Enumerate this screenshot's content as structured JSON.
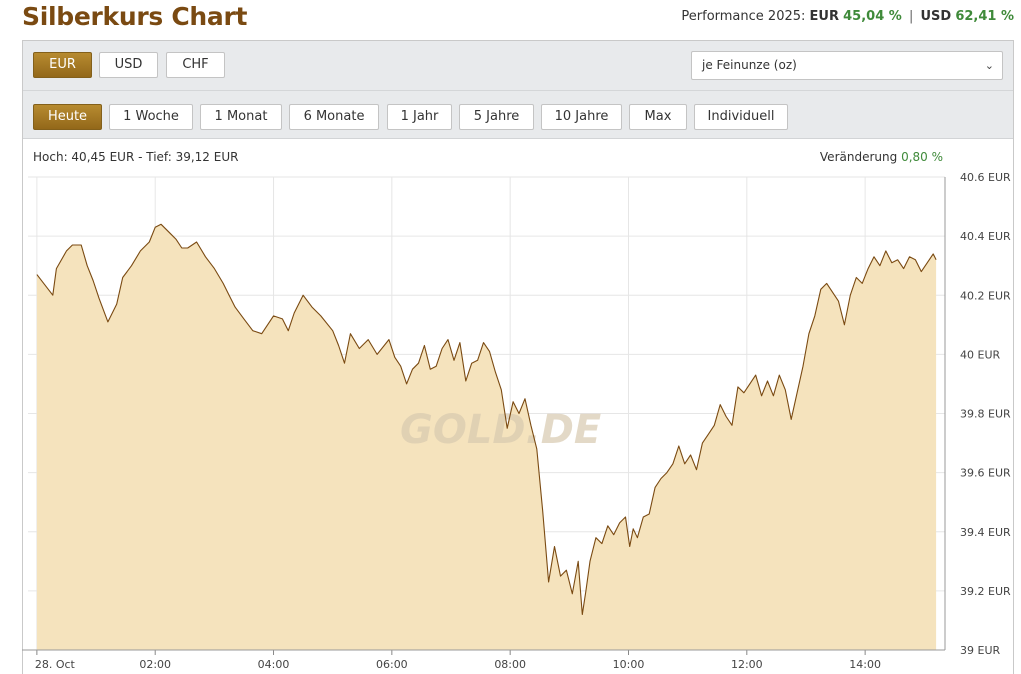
{
  "header": {
    "title": "Silberkurs Chart",
    "performance_label": "Performance 2025:",
    "eur_label": "EUR",
    "eur_value": "45,04 %",
    "separator": "|",
    "usd_label": "USD",
    "usd_value": "62,41 %"
  },
  "currency_tabs": [
    {
      "label": "EUR",
      "active": true
    },
    {
      "label": "USD",
      "active": false
    },
    {
      "label": "CHF",
      "active": false
    }
  ],
  "unit_select": {
    "value": "je Feinunze (oz)"
  },
  "range_tabs": [
    {
      "label": "Heute",
      "active": true
    },
    {
      "label": "1 Woche",
      "active": false
    },
    {
      "label": "1 Monat",
      "active": false
    },
    {
      "label": "6 Monate",
      "active": false
    },
    {
      "label": "1 Jahr",
      "active": false
    },
    {
      "label": "5 Jahre",
      "active": false
    },
    {
      "label": "10 Jahre",
      "active": false
    },
    {
      "label": "Max",
      "active": false
    },
    {
      "label": "Individuell",
      "active": false
    }
  ],
  "stats": {
    "high_low": "Hoch: 40,45 EUR - Tief: 39,12 EUR",
    "change_label": "Veränderung",
    "change_value": "0,80 %"
  },
  "colors": {
    "accent": "#a47a26",
    "line": "#7a4a12",
    "fill": "#f5e3bd",
    "positive": "#3f8a3a"
  },
  "chart_data": {
    "type": "area",
    "x_unit": "hours since 28 Oct 00:00",
    "x_tick_labels": [
      "28. Oct",
      "02:00",
      "04:00",
      "06:00",
      "08:00",
      "10:00",
      "12:00",
      "14:00"
    ],
    "x_tick_values": [
      0,
      2,
      4,
      6,
      8,
      10,
      12,
      14
    ],
    "xlim": [
      -0.15,
      15.35
    ],
    "y_tick_labels": [
      "39 EUR",
      "39.2 EUR",
      "39.4 EUR",
      "39.6 EUR",
      "39.8 EUR",
      "40 EUR",
      "40.2 EUR",
      "40.4 EUR",
      "40.6 EUR"
    ],
    "y_tick_values": [
      39.0,
      39.2,
      39.4,
      39.6,
      39.8,
      40.0,
      40.2,
      40.4,
      40.6
    ],
    "ylim": [
      39.0,
      40.6
    ],
    "grid": true,
    "watermark": "GOLD.DE",
    "x": [
      0.0,
      0.27,
      0.33,
      0.5,
      0.6,
      0.75,
      0.85,
      0.95,
      1.05,
      1.2,
      1.35,
      1.45,
      1.6,
      1.75,
      1.9,
      2.0,
      2.1,
      2.25,
      2.35,
      2.45,
      2.55,
      2.7,
      2.85,
      3.0,
      3.15,
      3.25,
      3.35,
      3.5,
      3.65,
      3.8,
      4.0,
      4.15,
      4.25,
      4.35,
      4.5,
      4.65,
      4.8,
      5.0,
      5.1,
      5.2,
      5.3,
      5.45,
      5.6,
      5.75,
      5.95,
      6.05,
      6.15,
      6.25,
      6.35,
      6.45,
      6.55,
      6.65,
      6.75,
      6.85,
      6.95,
      7.05,
      7.15,
      7.25,
      7.35,
      7.45,
      7.55,
      7.65,
      7.75,
      7.85,
      7.95,
      8.05,
      8.15,
      8.25,
      8.35,
      8.45,
      8.55,
      8.65,
      8.75,
      8.85,
      8.95,
      9.05,
      9.15,
      9.22,
      9.28,
      9.35,
      9.45,
      9.55,
      9.65,
      9.75,
      9.85,
      9.95,
      10.02,
      10.08,
      10.15,
      10.25,
      10.35,
      10.45,
      10.55,
      10.65,
      10.75,
      10.85,
      10.95,
      11.05,
      11.15,
      11.25,
      11.35,
      11.45,
      11.55,
      11.65,
      11.75,
      11.85,
      11.95,
      12.05,
      12.15,
      12.25,
      12.35,
      12.45,
      12.55,
      12.65,
      12.75,
      12.85,
      12.95,
      13.05,
      13.15,
      13.25,
      13.35,
      13.45,
      13.55,
      13.65,
      13.75,
      13.85,
      13.95,
      14.05,
      14.15,
      14.25,
      14.35,
      14.45,
      14.55,
      14.65,
      14.75,
      14.85,
      14.95,
      15.05,
      15.15,
      15.2
    ],
    "values": [
      40.27,
      40.2,
      40.29,
      40.35,
      40.37,
      40.37,
      40.3,
      40.25,
      40.19,
      40.11,
      40.17,
      40.26,
      40.3,
      40.35,
      40.38,
      40.43,
      40.44,
      40.41,
      40.39,
      40.36,
      40.36,
      40.38,
      40.33,
      40.29,
      40.24,
      40.2,
      40.16,
      40.12,
      40.08,
      40.07,
      40.13,
      40.12,
      40.08,
      40.14,
      40.2,
      40.16,
      40.13,
      40.08,
      40.03,
      39.97,
      40.07,
      40.02,
      40.05,
      40.0,
      40.05,
      39.99,
      39.96,
      39.9,
      39.95,
      39.97,
      40.03,
      39.95,
      39.96,
      40.02,
      40.05,
      39.98,
      40.04,
      39.91,
      39.97,
      39.98,
      40.04,
      40.01,
      39.94,
      39.88,
      39.75,
      39.84,
      39.8,
      39.85,
      39.76,
      39.68,
      39.47,
      39.23,
      39.35,
      39.25,
      39.27,
      39.19,
      39.3,
      39.12,
      39.2,
      39.3,
      39.38,
      39.36,
      39.42,
      39.39,
      39.43,
      39.45,
      39.35,
      39.41,
      39.38,
      39.45,
      39.46,
      39.55,
      39.58,
      39.6,
      39.63,
      39.69,
      39.63,
      39.66,
      39.61,
      39.7,
      39.73,
      39.76,
      39.83,
      39.79,
      39.76,
      39.89,
      39.87,
      39.9,
      39.93,
      39.86,
      39.91,
      39.86,
      39.93,
      39.88,
      39.78,
      39.87,
      39.96,
      40.07,
      40.13,
      40.22,
      40.24,
      40.21,
      40.18,
      40.1,
      40.2,
      40.26,
      40.24,
      40.29,
      40.33,
      40.3,
      40.35,
      40.31,
      40.32,
      40.29,
      40.33,
      40.32,
      40.28,
      40.31,
      40.34,
      40.32
    ]
  }
}
